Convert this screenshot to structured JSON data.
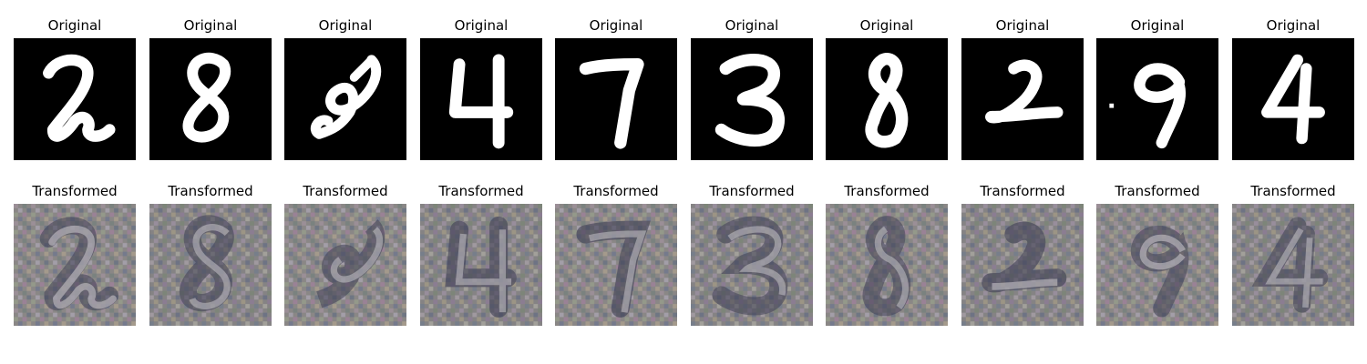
{
  "figure": {
    "rows": [
      {
        "row_label": "original",
        "panels": [
          {
            "title": "Original",
            "digit": "2"
          },
          {
            "title": "Original",
            "digit": "8"
          },
          {
            "title": "Original",
            "digit": "8"
          },
          {
            "title": "Original",
            "digit": "4"
          },
          {
            "title": "Original",
            "digit": "7"
          },
          {
            "title": "Original",
            "digit": "3"
          },
          {
            "title": "Original",
            "digit": "8"
          },
          {
            "title": "Original",
            "digit": "2"
          },
          {
            "title": "Original",
            "digit": "9"
          },
          {
            "title": "Original",
            "digit": "4"
          }
        ]
      },
      {
        "row_label": "transformed",
        "panels": [
          {
            "title": "Transformed",
            "digit": "2"
          },
          {
            "title": "Transformed",
            "digit": "8"
          },
          {
            "title": "Transformed",
            "digit": "8"
          },
          {
            "title": "Transformed",
            "digit": "4"
          },
          {
            "title": "Transformed",
            "digit": "7"
          },
          {
            "title": "Transformed",
            "digit": "3"
          },
          {
            "title": "Transformed",
            "digit": "8"
          },
          {
            "title": "Transformed",
            "digit": "2"
          },
          {
            "title": "Transformed",
            "digit": "9"
          },
          {
            "title": "Transformed",
            "digit": "4"
          }
        ]
      }
    ],
    "colors": {
      "original_background": "#000000",
      "original_stroke": "#ffffff",
      "transformed_background": "#8a8786",
      "transformed_stroke": "#c4c2c6",
      "transformed_shadow": "#3f3f55"
    }
  }
}
